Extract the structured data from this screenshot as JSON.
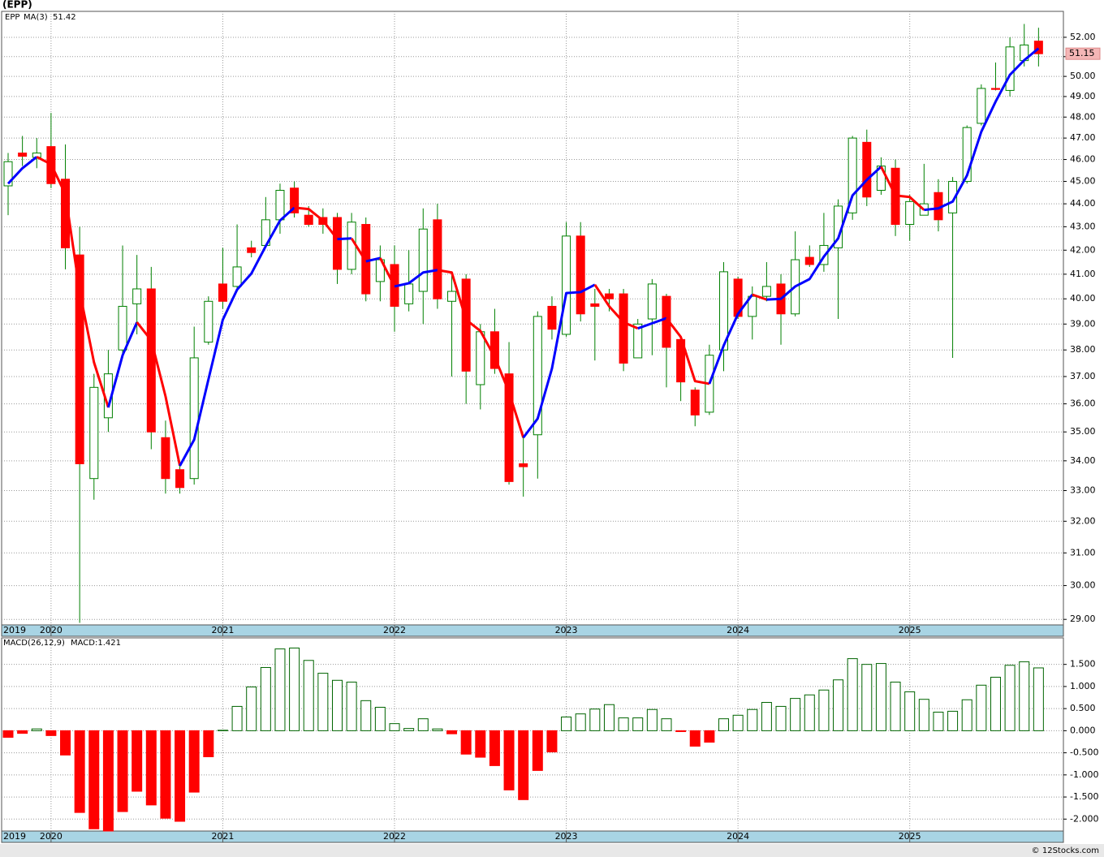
{
  "chart_data": [
    {
      "type": "candlestick",
      "title": "(EPP)",
      "log": true,
      "grid": true,
      "categories": [
        "2019",
        null,
        null,
        "2020",
        null,
        null,
        null,
        null,
        null,
        null,
        null,
        null,
        null,
        null,
        null,
        "2021",
        null,
        null,
        null,
        null,
        null,
        null,
        null,
        null,
        null,
        null,
        null,
        "2022",
        null,
        null,
        null,
        null,
        null,
        null,
        null,
        null,
        null,
        null,
        null,
        "2023",
        null,
        null,
        null,
        null,
        null,
        null,
        null,
        null,
        null,
        null,
        null,
        "2024",
        null,
        null,
        null,
        null,
        null,
        null,
        null,
        null,
        null,
        null,
        null,
        "2025",
        null,
        null,
        null,
        null,
        null,
        null,
        null,
        null,
        null
      ],
      "series": [
        {
          "name": "EPP",
          "color": "#008000",
          "up_color": "#ffffff",
          "down_color": "#ff0000",
          "open": [
            44.8,
            46.3,
            46.1,
            46.6,
            45.1,
            41.8,
            33.4,
            35.5,
            38.0,
            39.8,
            40.4,
            34.8,
            33.7,
            33.4,
            38.3,
            40.6,
            40.5,
            42.1,
            42.2,
            43.3,
            44.7,
            43.5,
            43.4,
            43.4,
            41.2,
            43.1,
            40.7,
            41.4,
            39.8,
            40.3,
            43.3,
            39.9,
            40.8,
            36.7,
            38.7,
            37.1,
            33.9,
            34.9,
            39.7,
            38.6,
            42.6,
            39.8,
            40.2,
            40.2,
            37.7,
            39.2,
            40.1,
            38.4,
            36.5,
            35.7,
            38.0,
            40.8,
            39.3,
            40.1,
            40.6,
            39.4,
            41.7,
            41.4,
            42.1,
            43.6,
            46.8,
            44.6,
            45.6,
            43.1,
            43.5,
            44.5,
            43.6,
            45.0,
            47.7,
            49.4,
            49.3,
            50.8,
            51.8
          ],
          "high": [
            46.3,
            47.1,
            47.0,
            48.2,
            46.7,
            43.0,
            37.1,
            38.0,
            42.2,
            41.8,
            41.3,
            35.4,
            33.9,
            38.9,
            40.1,
            42.1,
            43.1,
            42.4,
            44.3,
            44.9,
            45.0,
            43.9,
            43.8,
            43.6,
            43.6,
            43.4,
            42.2,
            42.2,
            42.0,
            43.8,
            44.0,
            41.0,
            41.0,
            39.0,
            39.6,
            38.3,
            34.9,
            39.5,
            40.1,
            43.2,
            43.2,
            40.4,
            40.4,
            40.4,
            39.2,
            40.8,
            40.2,
            38.5,
            36.6,
            38.2,
            41.5,
            40.9,
            40.5,
            41.5,
            41.0,
            42.8,
            42.2,
            43.6,
            44.2,
            47.1,
            47.4,
            46.1,
            46.0,
            44.4,
            45.8,
            45.1,
            45.2,
            47.6,
            49.6,
            50.7,
            52.0,
            52.7,
            52.5
          ],
          "low": [
            43.5,
            45.7,
            45.6,
            44.7,
            41.2,
            28.9,
            32.7,
            35.0,
            37.7,
            38.6,
            34.4,
            32.9,
            32.9,
            33.2,
            38.2,
            39.6,
            40.3,
            41.7,
            42.2,
            42.7,
            43.4,
            43.0,
            42.7,
            40.6,
            41.0,
            39.9,
            39.9,
            38.7,
            39.5,
            39.0,
            39.6,
            37.0,
            36.0,
            35.8,
            37.1,
            33.2,
            32.8,
            33.4,
            38.4,
            38.5,
            39.1,
            37.6,
            39.5,
            37.2,
            37.7,
            37.8,
            36.6,
            36.1,
            35.2,
            35.6,
            37.2,
            39.2,
            38.4,
            39.9,
            38.2,
            39.3,
            41.3,
            41.1,
            39.2,
            43.3,
            43.9,
            44.4,
            42.6,
            42.4,
            43.5,
            42.8,
            37.7,
            44.9,
            47.6,
            49.3,
            49.0,
            50.5,
            50.5
          ],
          "close": [
            45.9,
            46.15,
            46.3,
            44.9,
            42.1,
            33.9,
            36.6,
            37.1,
            39.7,
            40.4,
            35.0,
            33.4,
            33.1,
            37.7,
            39.9,
            39.9,
            41.3,
            41.9,
            43.3,
            44.6,
            43.6,
            43.1,
            43.1,
            41.2,
            43.2,
            40.2,
            41.6,
            39.7,
            40.6,
            42.9,
            40.0,
            40.3,
            37.2,
            38.7,
            37.3,
            33.3,
            33.8,
            39.3,
            38.8,
            42.6,
            39.4,
            39.7,
            40.0,
            37.5,
            39.0,
            40.6,
            38.1,
            36.8,
            35.6,
            37.8,
            41.1,
            39.3,
            40.1,
            40.5,
            39.4,
            41.6,
            41.4,
            42.2,
            43.9,
            47.0,
            44.3,
            45.7,
            43.1,
            44.1,
            44.0,
            43.3,
            45.0,
            47.5,
            49.4,
            49.35,
            51.5,
            51.6,
            51.15
          ]
        },
        {
          "name": "MA(3)",
          "color": "#0000ff",
          "falling_color": "#ff0000",
          "values": [
            44.9,
            45.6,
            46.12,
            45.78,
            44.43,
            40.3,
            37.53,
            35.87,
            37.8,
            39.07,
            38.37,
            36.27,
            33.83,
            34.73,
            36.9,
            39.17,
            40.37,
            41.03,
            42.17,
            43.27,
            43.83,
            43.77,
            43.27,
            42.47,
            42.5,
            41.53,
            41.67,
            40.5,
            40.63,
            41.07,
            41.17,
            41.07,
            39.17,
            38.73,
            37.73,
            36.43,
            34.8,
            35.47,
            37.3,
            40.23,
            40.27,
            40.57,
            39.7,
            39.07,
            38.83,
            39.03,
            39.23,
            38.5,
            36.83,
            36.73,
            38.17,
            39.4,
            40.17,
            39.97,
            40.0,
            40.5,
            40.8,
            41.73,
            42.5,
            44.37,
            45.07,
            45.67,
            44.37,
            44.3,
            43.73,
            43.8,
            44.1,
            45.27,
            47.3,
            48.75,
            50.08,
            50.82,
            51.42
          ]
        }
      ],
      "ylim": [
        28.84,
        53.37
      ],
      "yticks": [
        {
          "value": 52,
          "label": "52.00"
        },
        {
          "value": 51,
          "label": "51.00"
        },
        {
          "value": 50,
          "label": "50.00"
        },
        {
          "value": 49,
          "label": "49.00"
        },
        {
          "value": 48,
          "label": "48.00"
        },
        {
          "value": 47,
          "label": "47.00"
        },
        {
          "value": 46,
          "label": "46.00"
        },
        {
          "value": 45,
          "label": "45.00"
        },
        {
          "value": 44,
          "label": "44.00"
        },
        {
          "value": 43,
          "label": "43.00"
        },
        {
          "value": 42,
          "label": "42.00"
        },
        {
          "value": 41,
          "label": "41.00"
        },
        {
          "value": 40,
          "label": "40.00"
        },
        {
          "value": 39,
          "label": "39.00"
        },
        {
          "value": 38,
          "label": "38.00"
        },
        {
          "value": 37,
          "label": "37.00"
        },
        {
          "value": 36,
          "label": "36.00"
        },
        {
          "value": 35,
          "label": "35.00"
        },
        {
          "value": 34,
          "label": "34.00"
        },
        {
          "value": 33,
          "label": "33.00"
        },
        {
          "value": 32,
          "label": "32.00"
        },
        {
          "value": 31,
          "label": "31.00"
        },
        {
          "value": 30,
          "label": "30.00"
        },
        {
          "value": 29,
          "label": "29.00"
        }
      ]
    },
    {
      "type": "bar",
      "grid": true,
      "name": "MACD(26,12,9)",
      "last_label": "MACD:1.421",
      "up_color": "#006400",
      "down_color": "#ff0000",
      "label_color": "#0000ff",
      "categories": [
        "2019",
        null,
        null,
        "2020",
        null,
        null,
        null,
        null,
        null,
        null,
        null,
        null,
        null,
        null,
        null,
        "2021",
        null,
        null,
        null,
        null,
        null,
        null,
        null,
        null,
        null,
        null,
        null,
        "2022",
        null,
        null,
        null,
        null,
        null,
        null,
        null,
        null,
        null,
        null,
        null,
        "2023",
        null,
        null,
        null,
        null,
        null,
        null,
        null,
        null,
        null,
        null,
        null,
        "2024",
        null,
        null,
        null,
        null,
        null,
        null,
        null,
        null,
        null,
        null,
        null,
        "2025",
        null,
        null,
        null,
        null,
        null,
        null,
        null,
        null,
        null
      ],
      "values": [
        -0.15,
        -0.06,
        0.04,
        -0.11,
        -0.55,
        -1.85,
        -2.22,
        -2.27,
        -1.83,
        -1.37,
        -1.68,
        -1.98,
        -2.05,
        -1.39,
        -0.59,
        0.01,
        0.55,
        0.99,
        1.43,
        1.85,
        1.87,
        1.59,
        1.3,
        1.14,
        1.1,
        0.68,
        0.53,
        0.16,
        0.05,
        0.27,
        0.04,
        -0.07,
        -0.53,
        -0.6,
        -0.79,
        -1.34,
        -1.56,
        -0.9,
        -0.48,
        0.31,
        0.38,
        0.49,
        0.59,
        0.29,
        0.29,
        0.48,
        0.27,
        -0.02,
        -0.35,
        -0.26,
        0.27,
        0.35,
        0.48,
        0.64,
        0.55,
        0.73,
        0.81,
        0.92,
        1.15,
        1.63,
        1.5,
        1.52,
        1.1,
        0.88,
        0.71,
        0.42,
        0.44,
        0.7,
        1.03,
        1.21,
        1.48,
        1.56,
        1.421
      ],
      "ylim": [
        -2.27,
        2.1
      ],
      "yticks": [
        {
          "value": 1.5,
          "label": "1.500"
        },
        {
          "value": 1,
          "label": "1.000"
        },
        {
          "value": 0.5,
          "label": "0.500"
        },
        {
          "value": 0,
          "label": "0.000"
        },
        {
          "value": -0.5,
          "label": "-0.500"
        },
        {
          "value": -1,
          "label": "-1.000"
        },
        {
          "value": -1.5,
          "label": "-1.500"
        },
        {
          "value": -2,
          "label": "-2.000"
        }
      ]
    }
  ],
  "footer": "© 12Stocks.com"
}
